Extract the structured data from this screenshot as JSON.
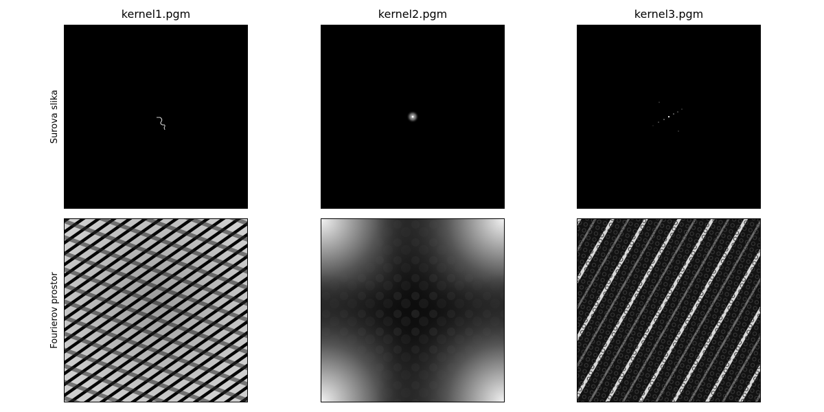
{
  "columns": [
    {
      "title": "kernel1.pgm"
    },
    {
      "title": "kernel2.pgm"
    },
    {
      "title": "kernel3.pgm"
    }
  ],
  "rows": [
    {
      "label": "Surova slika"
    },
    {
      "label": "Fourierov prostor"
    }
  ]
}
